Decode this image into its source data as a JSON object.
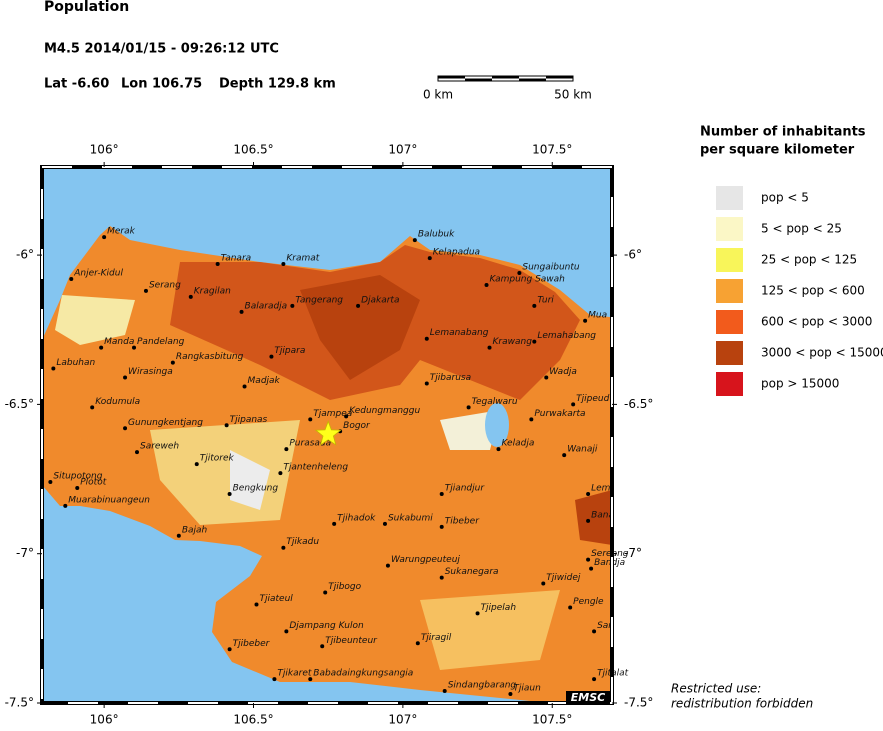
{
  "header": {
    "title": "Population",
    "event": "M4.5  2014/01/15 - 09:26:12 UTC",
    "lat": "Lat -6.60",
    "lon": "Lon 106.75",
    "depth": "Depth 129.8 km"
  },
  "scale_bar": {
    "start": "0 km",
    "end": "50 km"
  },
  "map": {
    "xlim": [
      105.792,
      107.7
    ],
    "ylim": [
      -7.5,
      -5.705
    ],
    "xticks": [
      {
        "value": 106,
        "label": "106°"
      },
      {
        "value": 106.5,
        "label": "106.5°"
      },
      {
        "value": 107,
        "label": "107°"
      },
      {
        "value": 107.5,
        "label": "107.5°"
      }
    ],
    "yticks": [
      {
        "value": -6,
        "label": "-6°"
      },
      {
        "value": -6.5,
        "label": "-6.5°"
      },
      {
        "value": -7,
        "label": "-7°"
      },
      {
        "value": -7.5,
        "label": "-7.5°"
      }
    ],
    "epicenter": {
      "lon": 106.75,
      "lat": -6.6
    },
    "cities": [
      {
        "name": "Merak",
        "lon": 106.0,
        "lat": -5.94
      },
      {
        "name": "Anjer-Kidul",
        "lon": 105.89,
        "lat": -6.08
      },
      {
        "name": "Serang",
        "lon": 106.14,
        "lat": -6.12
      },
      {
        "name": "Tanara",
        "lon": 106.38,
        "lat": -6.03
      },
      {
        "name": "Kramat",
        "lon": 106.6,
        "lat": -6.03
      },
      {
        "name": "Kragilan",
        "lon": 106.29,
        "lat": -6.14
      },
      {
        "name": "Balaradja",
        "lon": 106.46,
        "lat": -6.19
      },
      {
        "name": "Tangerang",
        "lon": 106.63,
        "lat": -6.17
      },
      {
        "name": "Djakarta",
        "lon": 106.85,
        "lat": -6.17
      },
      {
        "name": "Balubuk",
        "lon": 107.04,
        "lat": -5.95
      },
      {
        "name": "Kelapadua",
        "lon": 107.09,
        "lat": -6.01
      },
      {
        "name": "Sungaibuntu",
        "lon": 107.39,
        "lat": -6.06
      },
      {
        "name": "Kampung Sawah",
        "lon": 107.28,
        "lat": -6.1
      },
      {
        "name": "Turi",
        "lon": 107.44,
        "lat": -6.17
      },
      {
        "name": "Mua",
        "lon": 107.61,
        "lat": -6.22
      },
      {
        "name": "Lemanabang",
        "lon": 107.08,
        "lat": -6.28
      },
      {
        "name": "Krawang",
        "lon": 107.29,
        "lat": -6.31
      },
      {
        "name": "Lemahabang",
        "lon": 107.44,
        "lat": -6.29
      },
      {
        "name": "Labuhan",
        "lon": 105.83,
        "lat": -6.38
      },
      {
        "name": "Manda",
        "lon": 105.99,
        "lat": -6.31
      },
      {
        "name": "Pandelang",
        "lon": 106.1,
        "lat": -6.31
      },
      {
        "name": "Rangkasbitung",
        "lon": 106.23,
        "lat": -6.36
      },
      {
        "name": "Tjipara",
        "lon": 106.56,
        "lat": -6.34
      },
      {
        "name": "Wirasinga",
        "lon": 106.07,
        "lat": -6.41
      },
      {
        "name": "Madjak",
        "lon": 106.47,
        "lat": -6.44
      },
      {
        "name": "Tjibarusa",
        "lon": 107.08,
        "lat": -6.43
      },
      {
        "name": "Wadja",
        "lon": 107.48,
        "lat": -6.41
      },
      {
        "name": "Kodumula",
        "lon": 105.96,
        "lat": -6.51
      },
      {
        "name": "Gunungkentjang",
        "lon": 106.07,
        "lat": -6.58
      },
      {
        "name": "Tjipanas",
        "lon": 106.41,
        "lat": -6.57
      },
      {
        "name": "Tjampea",
        "lon": 106.69,
        "lat": -6.55
      },
      {
        "name": "Kedungmanggu",
        "lon": 106.81,
        "lat": -6.54
      },
      {
        "name": "Tegalwaru",
        "lon": 107.22,
        "lat": -6.51
      },
      {
        "name": "Tjipeud",
        "lon": 107.57,
        "lat": -6.5
      },
      {
        "name": "Purwakarta",
        "lon": 107.43,
        "lat": -6.55
      },
      {
        "name": "Bogor",
        "lon": 106.79,
        "lat": -6.59
      },
      {
        "name": "Sareweh",
        "lon": 106.11,
        "lat": -6.66
      },
      {
        "name": "Purasada",
        "lon": 106.61,
        "lat": -6.65
      },
      {
        "name": "Keladja",
        "lon": 107.32,
        "lat": -6.65
      },
      {
        "name": "Wanaji",
        "lon": 107.54,
        "lat": -6.67
      },
      {
        "name": "Tjitorek",
        "lon": 106.31,
        "lat": -6.7
      },
      {
        "name": "Tjantenheleng",
        "lon": 106.59,
        "lat": -6.73
      },
      {
        "name": "Situpotong",
        "lon": 105.82,
        "lat": -6.76
      },
      {
        "name": "Plotot",
        "lon": 105.91,
        "lat": -6.78
      },
      {
        "name": "Muarabinuangeun",
        "lon": 105.87,
        "lat": -6.84
      },
      {
        "name": "Bengkung",
        "lon": 106.42,
        "lat": -6.8
      },
      {
        "name": "Tjiandjur",
        "lon": 107.13,
        "lat": -6.8
      },
      {
        "name": "Lem",
        "lon": 107.62,
        "lat": -6.8
      },
      {
        "name": "Tjihadok",
        "lon": 106.77,
        "lat": -6.9
      },
      {
        "name": "Sukabumi",
        "lon": 106.94,
        "lat": -6.9
      },
      {
        "name": "Tibeber",
        "lon": 107.13,
        "lat": -6.91
      },
      {
        "name": "Bana",
        "lon": 107.62,
        "lat": -6.89
      },
      {
        "name": "Bajah",
        "lon": 106.25,
        "lat": -6.94
      },
      {
        "name": "Tjikadu",
        "lon": 106.6,
        "lat": -6.98
      },
      {
        "name": "Warungpeuteuj",
        "lon": 106.95,
        "lat": -7.04
      },
      {
        "name": "Sereang",
        "lon": 107.62,
        "lat": -7.02
      },
      {
        "name": "Bandja",
        "lon": 107.63,
        "lat": -7.05
      },
      {
        "name": "Sukanegara",
        "lon": 107.13,
        "lat": -7.08
      },
      {
        "name": "Tjiwidej",
        "lon": 107.47,
        "lat": -7.1
      },
      {
        "name": "Tjibogo",
        "lon": 106.74,
        "lat": -7.13
      },
      {
        "name": "Tjiateul",
        "lon": 106.51,
        "lat": -7.17
      },
      {
        "name": "Pengle",
        "lon": 107.56,
        "lat": -7.18
      },
      {
        "name": "Tjipelah",
        "lon": 107.25,
        "lat": -7.2
      },
      {
        "name": "Sar",
        "lon": 107.64,
        "lat": -7.26
      },
      {
        "name": "Djampang Kulon",
        "lon": 106.61,
        "lat": -7.26
      },
      {
        "name": "Tjibeunteur",
        "lon": 106.73,
        "lat": -7.31
      },
      {
        "name": "Tjiragil",
        "lon": 107.05,
        "lat": -7.3
      },
      {
        "name": "Tjibeber",
        "lon": 106.42,
        "lat": -7.32
      },
      {
        "name": "Tjikaret",
        "lon": 106.57,
        "lat": -7.42
      },
      {
        "name": "Babadaingkungsangia",
        "lon": 106.69,
        "lat": -7.42
      },
      {
        "name": "Sindangbarang",
        "lon": 107.14,
        "lat": -7.46
      },
      {
        "name": "Tjiaun",
        "lon": 107.36,
        "lat": -7.47
      },
      {
        "name": "Tjitalat",
        "lon": 107.64,
        "lat": -7.42
      }
    ]
  },
  "legend": {
    "title": [
      "Number of inhabitants",
      "per square kilometer"
    ],
    "items": [
      {
        "label": "pop < 5",
        "color": "#e6e6e6"
      },
      {
        "label": "5 < pop < 25",
        "color": "#fbf7c6"
      },
      {
        "label": "25 < pop < 125",
        "color": "#f8f55a"
      },
      {
        "label": "125 < pop < 600",
        "color": "#f7a233"
      },
      {
        "label": "600 < pop < 3000",
        "color": "#f25b1c"
      },
      {
        "label": "3000 < pop < 15000",
        "color": "#b8420e"
      },
      {
        "label": "pop > 15000",
        "color": "#d7141c"
      }
    ]
  },
  "note": [
    "Restricted use:",
    "redistribution forbidden"
  ],
  "credit": "EMSC"
}
